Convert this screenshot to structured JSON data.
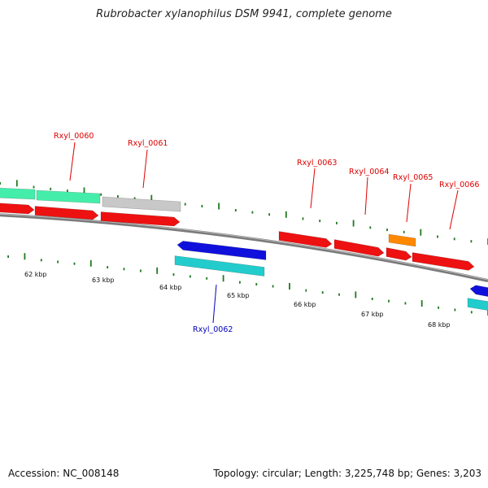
{
  "title": "Rubrobacter xylanophilus DSM 9941, complete genome",
  "footer": {
    "accession": "Accession: NC_008148",
    "summary": "Topology: circular; Length: 3,225,748 bp; Genes: 3,203"
  },
  "colors": {
    "backbone": "#7a7a7a",
    "tick": "#1f7a1f",
    "label_plus": "#dd0000",
    "label_minus": "#0000bb",
    "red": "#ee1111",
    "orange": "#ff8800",
    "blue": "#1010dd",
    "cyan": "#22cccc",
    "gray": "#c8c8c8",
    "green": "#44eeaa"
  },
  "scale_labels": [
    "62 kbp",
    "63 kbp",
    "64 kbp",
    "65 kbp",
    "66 kbp",
    "67 kbp",
    "68 kbp"
  ],
  "gene_labels": [
    {
      "text": "Rxyl_0060",
      "strand": "plus"
    },
    {
      "text": "Rxyl_0061",
      "strand": "plus"
    },
    {
      "text": "Rxyl_0062",
      "strand": "minus"
    },
    {
      "text": "Rxyl_0063",
      "strand": "plus"
    },
    {
      "text": "Rxyl_0064",
      "strand": "plus"
    },
    {
      "text": "Rxyl_0065",
      "strand": "plus"
    },
    {
      "text": "Rxyl_0066",
      "strand": "plus"
    }
  ]
}
